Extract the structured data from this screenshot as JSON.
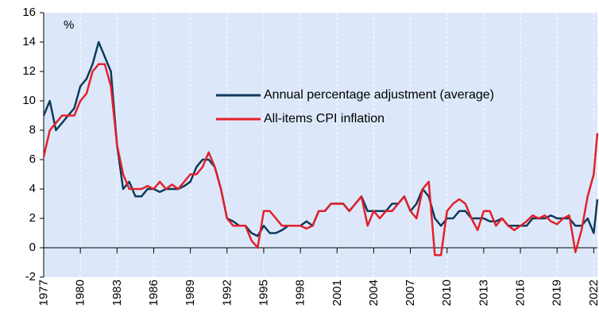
{
  "chart_data": {
    "type": "line",
    "annotation": "%",
    "x": [
      1977,
      1977.5,
      1978,
      1978.5,
      1979,
      1979.5,
      1980,
      1980.5,
      1981,
      1981.5,
      1982,
      1982.5,
      1983,
      1983.5,
      1984,
      1984.5,
      1985,
      1985.5,
      1986,
      1986.5,
      1987,
      1987.5,
      1988,
      1988.5,
      1989,
      1989.5,
      1990,
      1990.5,
      1991,
      1991.5,
      1992,
      1992.5,
      1993,
      1993.5,
      1994,
      1994.5,
      1995,
      1995.5,
      1996,
      1996.5,
      1997,
      1997.5,
      1998,
      1998.5,
      1999,
      1999.5,
      2000,
      2000.5,
      2001,
      2001.5,
      2002,
      2002.5,
      2003,
      2003.5,
      2004,
      2004.5,
      2005,
      2005.5,
      2006,
      2006.5,
      2007,
      2007.5,
      2008,
      2008.5,
      2009,
      2009.5,
      2010,
      2010.5,
      2011,
      2011.5,
      2012,
      2012.5,
      2013,
      2013.5,
      2014,
      2014.5,
      2015,
      2015.5,
      2016,
      2016.5,
      2017,
      2017.5,
      2018,
      2018.5,
      2019,
      2019.5,
      2020,
      2020.5,
      2021,
      2021.5,
      2022,
      2022.3
    ],
    "series": [
      {
        "name": "Annual percentage adjustment (average)",
        "color": "#0e3a5a",
        "values": [
          9,
          10,
          8,
          8.5,
          9,
          9.5,
          11,
          11.5,
          12.5,
          14,
          13,
          12,
          7,
          4,
          4.5,
          3.5,
          3.5,
          4,
          4,
          3.8,
          4,
          4,
          4,
          4.2,
          4.5,
          5.5,
          6,
          6,
          5.5,
          4,
          2,
          1.8,
          1.5,
          1.5,
          1,
          0.8,
          1.5,
          1,
          1,
          1.2,
          1.5,
          1.5,
          1.5,
          1.8,
          1.5,
          2.5,
          2.5,
          3,
          3,
          3,
          2.5,
          3,
          3.5,
          2.5,
          2.5,
          2.5,
          2.5,
          3,
          3,
          3.5,
          2.5,
          3,
          4,
          3.5,
          2,
          1.5,
          2,
          2,
          2.5,
          2.5,
          2,
          2,
          2,
          1.8,
          1.8,
          2,
          1.5,
          1.5,
          1.5,
          1.5,
          2,
          2,
          2,
          2.2,
          2,
          2,
          2,
          1.5,
          1.5,
          2,
          1,
          3.3
        ]
      },
      {
        "name": "All-items CPI inflation",
        "color": "#e3202a",
        "values": [
          6.2,
          8,
          8.5,
          9,
          9,
          9,
          10,
          10.5,
          12,
          12.5,
          12.5,
          11,
          7,
          5,
          4,
          4,
          4,
          4.2,
          4,
          4.5,
          4,
          4.3,
          4,
          4.5,
          5,
          5,
          5.5,
          6.5,
          5.5,
          4,
          2,
          1.5,
          1.5,
          1.5,
          0.5,
          0,
          2.5,
          2.5,
          2,
          1.5,
          1.5,
          1.5,
          1.5,
          1.3,
          1.5,
          2.5,
          2.5,
          3,
          3,
          3,
          2.5,
          3,
          3.5,
          1.5,
          2.5,
          2,
          2.5,
          2.5,
          3,
          3.5,
          2.5,
          2,
          4,
          4.5,
          -0.5,
          -0.5,
          2.5,
          3,
          3.3,
          3,
          2,
          1.2,
          2.5,
          2.5,
          1.5,
          2,
          1.5,
          1.2,
          1.5,
          1.8,
          2.2,
          2,
          2.2,
          1.8,
          1.6,
          2,
          2.2,
          -0.3,
          1.2,
          3.5,
          5,
          7.8
        ]
      }
    ],
    "xlim": [
      1977,
      2022.3
    ],
    "xticks": [
      1977,
      1980,
      1983,
      1986,
      1989,
      1992,
      1995,
      1998,
      2001,
      2004,
      2007,
      2010,
      2013,
      2016,
      2019,
      2022
    ],
    "ylim": [
      -2,
      16
    ],
    "yticks": [
      -2,
      0,
      2,
      4,
      6,
      8,
      10,
      12,
      14,
      16
    ],
    "grid": "x"
  }
}
